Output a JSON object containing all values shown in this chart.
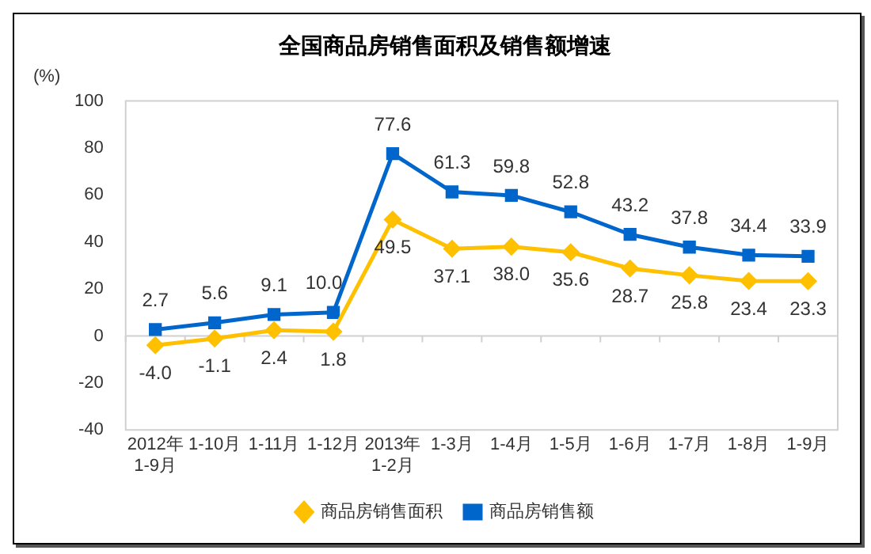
{
  "chart_data": {
    "type": "line",
    "title": "全国商品房销售面积及销售额增速",
    "ylabel": "(%)",
    "categories": [
      "2012年\n1-9月",
      "1-10月",
      "1-11月",
      "1-12月",
      "2013年\n1-2月",
      "1-3月",
      "1-4月",
      "1-5月",
      "1-6月",
      "1-7月",
      "1-8月",
      "1-9月"
    ],
    "series": [
      {
        "name": "商品房销售面积",
        "color": "#ffc000",
        "marker": "diamond",
        "values": [
          -4.0,
          -1.1,
          2.4,
          1.8,
          49.5,
          37.1,
          38.0,
          35.6,
          28.7,
          25.8,
          23.4,
          23.3
        ],
        "value_labels": [
          "-4.0",
          "-1.1",
          "2.4",
          "1.8",
          "49.5",
          "37.1",
          "38.0",
          "35.6",
          "28.7",
          "25.8",
          "23.4",
          "23.3"
        ]
      },
      {
        "name": "商品房销售额",
        "color": "#0066cc",
        "marker": "square",
        "values": [
          2.7,
          5.6,
          9.1,
          10.0,
          77.6,
          61.3,
          59.8,
          52.8,
          43.2,
          37.8,
          34.4,
          33.9
        ],
        "value_labels": [
          "2.7",
          "5.6",
          "9.1",
          "10.0",
          "77.6",
          "61.3",
          "59.8",
          "52.8",
          "43.2",
          "37.8",
          "34.4",
          "33.9"
        ]
      }
    ],
    "ylim": [
      -40,
      100
    ],
    "yticks": [
      -40,
      -20,
      0,
      20,
      40,
      60,
      80,
      100
    ],
    "ref_lines": [
      {
        "axis": "y",
        "value": 0,
        "color": "#d0d0d0"
      }
    ],
    "legend": "bottom"
  }
}
